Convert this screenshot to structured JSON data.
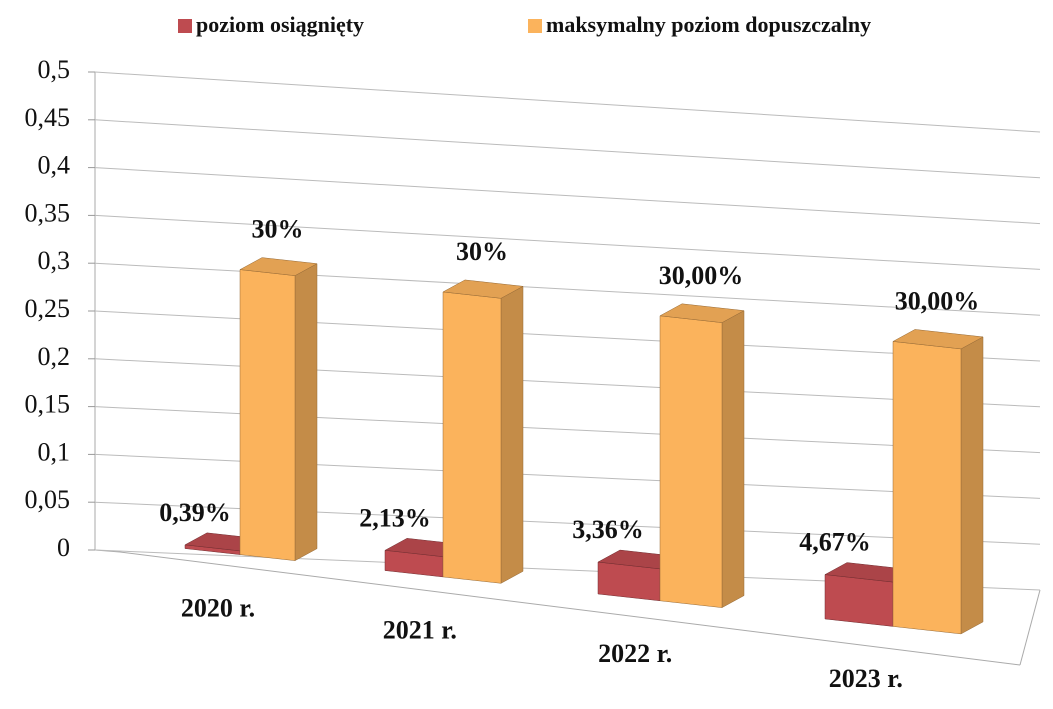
{
  "chart_data": {
    "type": "bar3d",
    "categories": [
      "2020 r.",
      "2021 r.",
      "2022 r.",
      "2023 r."
    ],
    "series": [
      {
        "name": "poziom osiągnięty",
        "color": "#be4b50",
        "values": [
          0.0039,
          0.0213,
          0.0336,
          0.0467
        ],
        "value_labels": [
          "0,39%",
          "2,13%",
          "3,36%",
          "4,67%"
        ]
      },
      {
        "name": "maksymalny poziom dopuszczalny",
        "color": "#fbb35c",
        "values": [
          0.3,
          0.3,
          0.3,
          0.3
        ],
        "value_labels": [
          "30%",
          "30%",
          "30,00%",
          "30,00%"
        ]
      }
    ],
    "ylim": [
      0,
      0.5
    ],
    "yticks": [
      0,
      {
        "value": 0.05,
        "label": "0,05"
      },
      {
        "value": 0.1,
        "label": "0,1"
      },
      {
        "value": 0.15,
        "label": "0,15"
      },
      {
        "value": 0.2,
        "label": "0,2"
      },
      {
        "value": 0.25,
        "label": "0,25"
      },
      {
        "value": 0.3,
        "label": "0,3"
      },
      {
        "value": 0.35,
        "label": "0,35"
      },
      {
        "value": 0.4,
        "label": "0,4"
      },
      {
        "value": 0.45,
        "label": "0,45"
      },
      {
        "value": 0.5,
        "label": "0,5"
      }
    ],
    "grid": true,
    "legend": "top"
  }
}
